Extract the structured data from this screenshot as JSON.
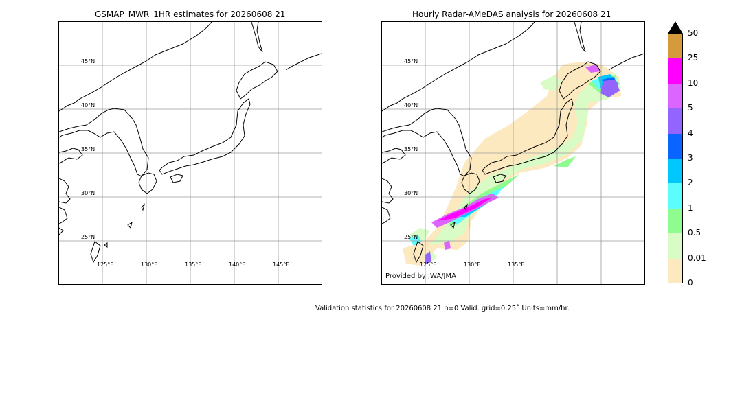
{
  "left_panel": {
    "title": "GSMAP_MWR_1HR estimates for 20260608 21",
    "lat_labels": [
      "45°N",
      "40°N",
      "35°N",
      "30°N",
      "25°N"
    ],
    "lon_labels": [
      "125°E",
      "130°E",
      "135°E",
      "140°E",
      "145°E"
    ]
  },
  "right_panel": {
    "title": "Hourly Radar-AMeDAS analysis for 20260608 21",
    "lat_labels": [
      "45°N",
      "40°N",
      "35°N",
      "30°N",
      "25°N"
    ],
    "lon_labels": [
      "125°E",
      "130°E",
      "135°E"
    ],
    "credit": "Provided by JWA/JMA"
  },
  "colorbar": {
    "labels": [
      "0",
      "0.01",
      "0.5",
      "1",
      "2",
      "3",
      "4",
      "5",
      "10",
      "25",
      "50"
    ],
    "colors": [
      "#fde9c0",
      "#d9fbc5",
      "#8efc8e",
      "#5cfdfd",
      "#00c8ff",
      "#0a64ff",
      "#9464ff",
      "#dc64ff",
      "#ff00ff",
      "#d49a3c",
      "#000000"
    ]
  },
  "validation": {
    "text": "Validation statistics for 20260608 21  n=0 Valid. grid=0.25˚ Units=mm/hr."
  }
}
